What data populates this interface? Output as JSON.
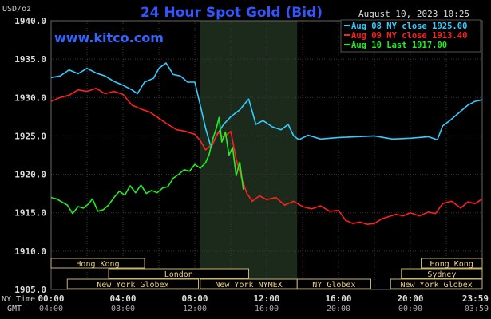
{
  "chart_data": {
    "type": "line",
    "title": "24 Hour Spot Gold (Bid)",
    "yunit": "USD/oz",
    "date": "August 10, 2023 10:25",
    "watermark": "www.kitco.com",
    "ylim": [
      1905,
      1940
    ],
    "yticks": [
      "1905.0",
      "1910.0",
      "1915.0",
      "1920.0",
      "1925.0",
      "1930.0",
      "1935.0",
      "1940.0"
    ],
    "xlim": [
      0,
      24
    ],
    "xticks": [
      {
        "x": 0,
        "ny": "00:00",
        "gmt": "04:00"
      },
      {
        "x": 4,
        "ny": "04:00",
        "gmt": "08:00"
      },
      {
        "x": 8,
        "ny": "08:00",
        "gmt": "12:00"
      },
      {
        "x": 12,
        "ny": "12:00",
        "gmt": "16:00"
      },
      {
        "x": 16,
        "ny": "16:00",
        "gmt": "20:00"
      },
      {
        "x": 20,
        "ny": "20:00",
        "gmt": "00:00"
      },
      {
        "x": 24,
        "ny": "23:59",
        "gmt": "03:59"
      }
    ],
    "axis_ny_label": "NY Time",
    "axis_gmt_label": "GMT",
    "grid": true,
    "legend_position": "top-right",
    "highlight_range": [
      8.3,
      13.7
    ],
    "series": [
      {
        "name": "Aug 08 NY close 1925.00",
        "color": "#33ccff",
        "points": [
          [
            0,
            1932.6
          ],
          [
            0.5,
            1932.8
          ],
          [
            1,
            1933.6
          ],
          [
            1.5,
            1933.1
          ],
          [
            2,
            1933.8
          ],
          [
            2.5,
            1933.2
          ],
          [
            3,
            1932.8
          ],
          [
            3.5,
            1932.1
          ],
          [
            4,
            1931.6
          ],
          [
            4.5,
            1931.0
          ],
          [
            4.8,
            1930.5
          ],
          [
            5.2,
            1932.0
          ],
          [
            5.7,
            1932.5
          ],
          [
            6,
            1933.8
          ],
          [
            6.4,
            1934.5
          ],
          [
            6.8,
            1933.0
          ],
          [
            7.2,
            1932.8
          ],
          [
            7.6,
            1932.0
          ],
          [
            8,
            1932.0
          ],
          [
            8.3,
            1929.0
          ],
          [
            8.6,
            1926.0
          ],
          [
            8.9,
            1923.5
          ],
          [
            9.2,
            1925.0
          ],
          [
            9.6,
            1926.5
          ],
          [
            10,
            1927.5
          ],
          [
            10.5,
            1928.4
          ],
          [
            11,
            1929.8
          ],
          [
            11.4,
            1926.5
          ],
          [
            11.8,
            1927.0
          ],
          [
            12.3,
            1926.2
          ],
          [
            12.8,
            1925.8
          ],
          [
            13.2,
            1926.5
          ],
          [
            13.5,
            1925.0
          ],
          [
            13.8,
            1924.5
          ],
          [
            14.3,
            1925.1
          ],
          [
            15,
            1924.6
          ],
          [
            16,
            1924.8
          ],
          [
            17,
            1924.9
          ],
          [
            18,
            1925.0
          ],
          [
            19,
            1924.6
          ],
          [
            20,
            1924.7
          ],
          [
            21,
            1924.9
          ],
          [
            21.5,
            1924.5
          ],
          [
            21.8,
            1926.3
          ],
          [
            22.2,
            1927.0
          ],
          [
            22.7,
            1928.0
          ],
          [
            23.2,
            1929.0
          ],
          [
            23.6,
            1929.5
          ],
          [
            24,
            1929.7
          ]
        ]
      },
      {
        "name": "Aug 09 NY close 1913.40",
        "color": "#ff2020",
        "points": [
          [
            0,
            1929.5
          ],
          [
            0.5,
            1930.0
          ],
          [
            1,
            1930.3
          ],
          [
            1.5,
            1931.0
          ],
          [
            2,
            1930.8
          ],
          [
            2.5,
            1931.2
          ],
          [
            3,
            1930.5
          ],
          [
            3.5,
            1930.8
          ],
          [
            4,
            1930.4
          ],
          [
            4.5,
            1929.0
          ],
          [
            5,
            1928.5
          ],
          [
            5.5,
            1928.1
          ],
          [
            6,
            1927.3
          ],
          [
            6.5,
            1926.5
          ],
          [
            7,
            1925.8
          ],
          [
            7.5,
            1925.6
          ],
          [
            8,
            1925.2
          ],
          [
            8.3,
            1924.4
          ],
          [
            8.6,
            1923.2
          ],
          [
            9,
            1924.0
          ],
          [
            9.3,
            1925.5
          ],
          [
            9.6,
            1924.8
          ],
          [
            10,
            1925.6
          ],
          [
            10.3,
            1922.0
          ],
          [
            10.6,
            1919.5
          ],
          [
            10.9,
            1917.5
          ],
          [
            11.2,
            1916.5
          ],
          [
            11.6,
            1917.2
          ],
          [
            12,
            1916.7
          ],
          [
            12.5,
            1917.0
          ],
          [
            13,
            1916.0
          ],
          [
            13.5,
            1916.5
          ],
          [
            14,
            1915.8
          ],
          [
            14.5,
            1915.5
          ],
          [
            15,
            1915.9
          ],
          [
            15.5,
            1915.2
          ],
          [
            16,
            1915.3
          ],
          [
            16.4,
            1914.0
          ],
          [
            16.8,
            1913.6
          ],
          [
            17.2,
            1913.8
          ],
          [
            17.6,
            1913.5
          ],
          [
            18,
            1913.6
          ],
          [
            18.4,
            1914.2
          ],
          [
            18.8,
            1914.5
          ],
          [
            19.2,
            1914.8
          ],
          [
            19.6,
            1914.6
          ],
          [
            20,
            1915.0
          ],
          [
            20.5,
            1914.6
          ],
          [
            21,
            1915.1
          ],
          [
            21.4,
            1914.9
          ],
          [
            21.8,
            1916.2
          ],
          [
            22.3,
            1916.5
          ],
          [
            22.8,
            1915.6
          ],
          [
            23.2,
            1916.4
          ],
          [
            23.6,
            1916.2
          ],
          [
            24,
            1916.8
          ]
        ]
      },
      {
        "name": "Aug 10 Last 1917.00",
        "color": "#22ee22",
        "points": [
          [
            0,
            1917.0
          ],
          [
            0.3,
            1916.8
          ],
          [
            0.6,
            1916.4
          ],
          [
            0.9,
            1916.0
          ],
          [
            1.2,
            1914.9
          ],
          [
            1.5,
            1915.8
          ],
          [
            1.8,
            1915.6
          ],
          [
            2.1,
            1916.2
          ],
          [
            2.3,
            1916.8
          ],
          [
            2.6,
            1915.2
          ],
          [
            2.9,
            1915.4
          ],
          [
            3.2,
            1916.0
          ],
          [
            3.5,
            1917.0
          ],
          [
            3.8,
            1917.8
          ],
          [
            4.1,
            1917.3
          ],
          [
            4.4,
            1918.5
          ],
          [
            4.7,
            1917.6
          ],
          [
            5.0,
            1918.6
          ],
          [
            5.3,
            1917.5
          ],
          [
            5.6,
            1917.9
          ],
          [
            5.9,
            1917.6
          ],
          [
            6.2,
            1918.2
          ],
          [
            6.5,
            1918.4
          ],
          [
            6.8,
            1919.5
          ],
          [
            7.1,
            1920.0
          ],
          [
            7.4,
            1920.6
          ],
          [
            7.7,
            1920.4
          ],
          [
            8.0,
            1921.3
          ],
          [
            8.3,
            1920.8
          ],
          [
            8.6,
            1921.5
          ],
          [
            8.8,
            1922.6
          ],
          [
            9.0,
            1924.6
          ],
          [
            9.2,
            1926.0
          ],
          [
            9.35,
            1927.4
          ],
          [
            9.5,
            1924.2
          ],
          [
            9.7,
            1925.5
          ],
          [
            9.9,
            1922.5
          ],
          [
            10.1,
            1923.5
          ],
          [
            10.3,
            1919.8
          ],
          [
            10.5,
            1921.6
          ],
          [
            10.7,
            1918.0
          ]
        ]
      }
    ]
  },
  "sessions": [
    {
      "label": "Hong Kong",
      "start": 0,
      "end": 5.2
    },
    {
      "label": "London",
      "start": 3.2,
      "end": 11.0
    },
    {
      "label": "New York Globex",
      "start": 0.9,
      "end": 8.2
    },
    {
      "label": "New York NYMEX",
      "start": 8.3,
      "end": 13.7
    },
    {
      "label": "NY Globex",
      "start": 13.7,
      "end": 17.8
    },
    {
      "label": "Hong Kong",
      "start": 20.6,
      "end": 24
    },
    {
      "label": "Sydney",
      "start": 19.5,
      "end": 24
    },
    {
      "label": "New York Globex",
      "start": 18.9,
      "end": 24
    }
  ]
}
